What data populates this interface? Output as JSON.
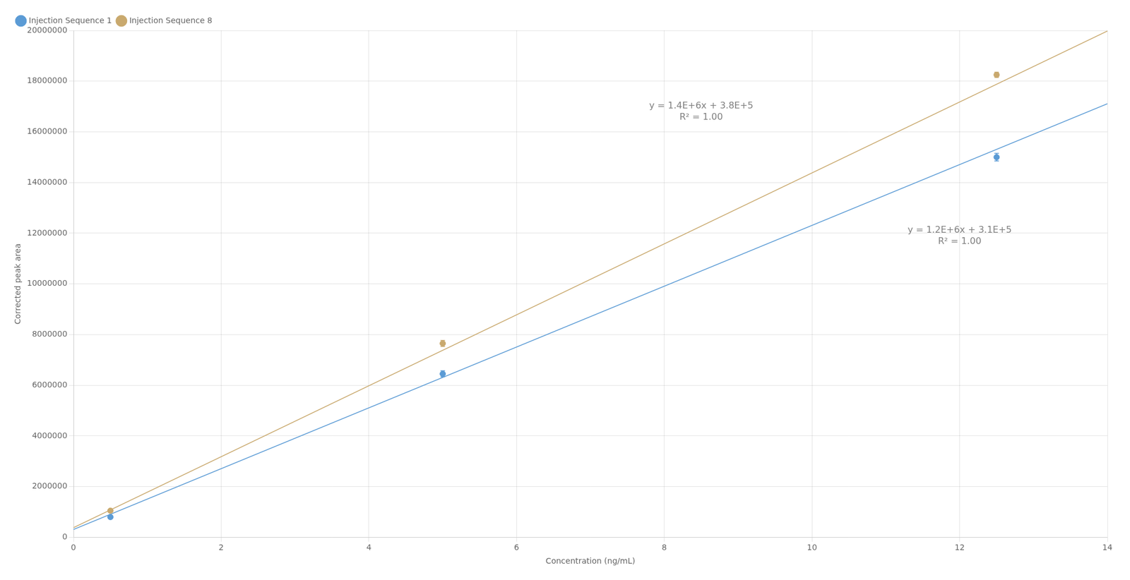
{
  "chart_data": {
    "type": "scatter",
    "xlabel": "Concentration (ng/mL)",
    "ylabel": "Corrected peak area",
    "series": [
      {
        "type": "line",
        "color": "#5b9bd5",
        "x": [
          0,
          14
        ],
        "values": [
          310000,
          17110000
        ]
      },
      {
        "type": "line",
        "color": "#c9a96e",
        "x": [
          0,
          14
        ],
        "values": [
          380000,
          19980000
        ]
      },
      {
        "type": "scatter",
        "name": "Injection Sequence 1",
        "color": "#5b9bd5",
        "marker": "circle",
        "x": [
          0.5,
          5.0,
          12.5
        ],
        "values": [
          800000,
          6450000,
          15000000
        ],
        "yerr": [
          50000,
          120000,
          150000
        ]
      },
      {
        "type": "scatter",
        "name": "Injection Sequence 8",
        "color": "#c9a96e",
        "marker": "circle",
        "x": [
          0.5,
          5.0,
          12.5
        ],
        "values": [
          1050000,
          7650000,
          18250000
        ],
        "yerr": [
          50000,
          120000,
          100000
        ]
      }
    ],
    "annotations": [
      {
        "text": "y = 1.4E+6x + 3.8E+5\nR² = 1.00",
        "x": 8.5,
        "y": 17200000
      },
      {
        "text": "y = 1.2E+6x + 3.1E+5\nR² = 1.00",
        "x": 12.0,
        "y": 12300000
      }
    ],
    "xlim": [
      0,
      14
    ],
    "ylim": [
      0,
      20000000
    ],
    "xticks": [
      0,
      2,
      4,
      6,
      8,
      10,
      12,
      14
    ],
    "yticks": [
      0,
      2000000,
      4000000,
      6000000,
      8000000,
      10000000,
      12000000,
      14000000,
      16000000,
      18000000,
      20000000
    ],
    "grid": true,
    "legend": "upper left"
  }
}
